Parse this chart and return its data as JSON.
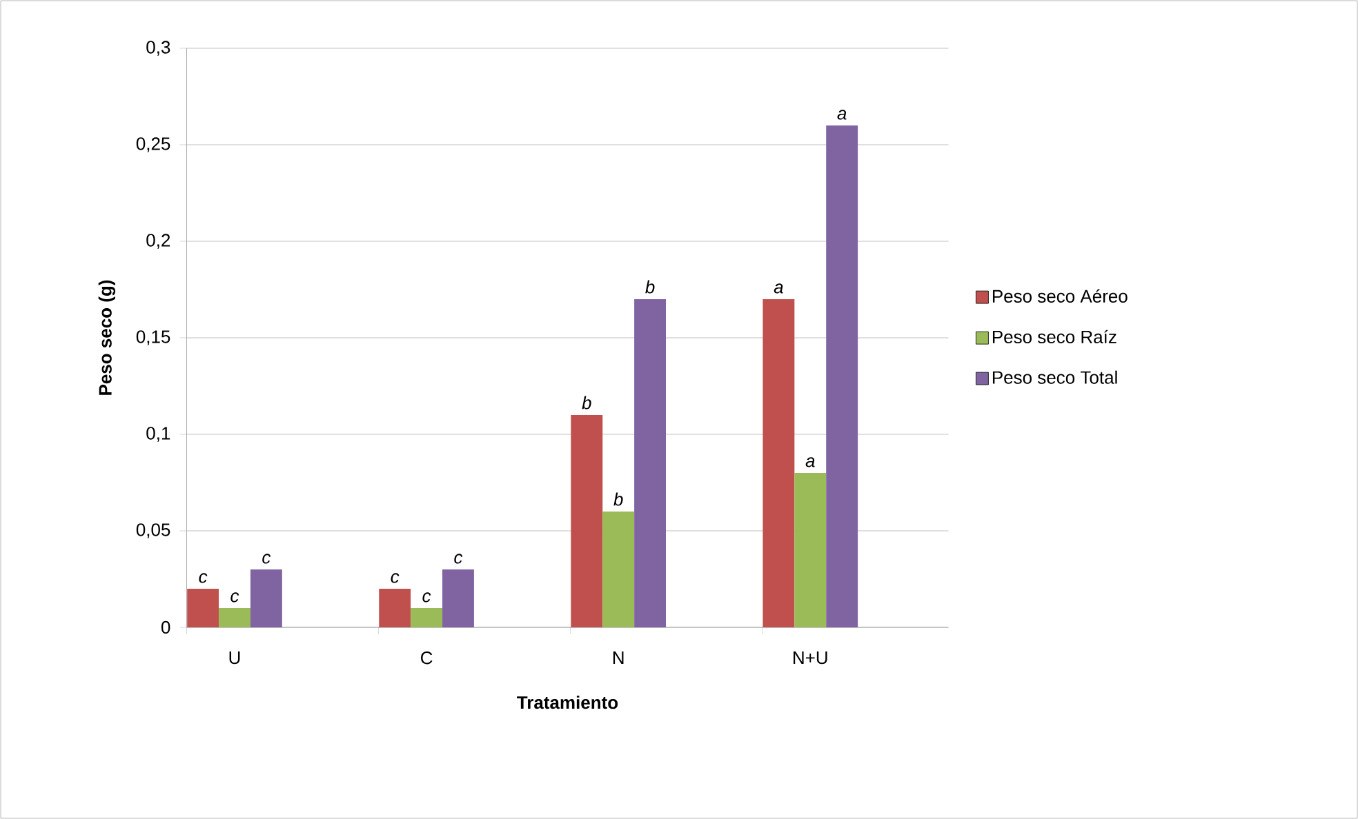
{
  "chart_data": {
    "type": "bar",
    "xlabel": "Tratamiento",
    "ylabel": "Peso seco (g)",
    "categories": [
      "U",
      "C",
      "N",
      "N+U"
    ],
    "series": [
      {
        "name": "Peso seco Aéreo",
        "color": "#c0504d",
        "values": [
          0.02,
          0.02,
          0.11,
          0.17
        ]
      },
      {
        "name": "Peso seco Raíz",
        "color": "#9bbb59",
        "values": [
          0.01,
          0.01,
          0.06,
          0.08
        ]
      },
      {
        "name": "Peso seco Total",
        "color": "#8064a2",
        "values": [
          0.03,
          0.03,
          0.17,
          0.26
        ]
      }
    ],
    "ylim": [
      0,
      0.3
    ],
    "yticks": [
      0,
      {
        "value": 0.05,
        "label": "0,05"
      },
      {
        "value": 0.1,
        "label": "0,1"
      },
      {
        "value": 0.15,
        "label": "0,15"
      },
      {
        "value": 0.2,
        "label": "0,2"
      },
      {
        "value": 0.25,
        "label": "0,25"
      },
      {
        "value": 0.3,
        "label": "0,3"
      }
    ],
    "grid": "y",
    "legend": "right",
    "annotations": [
      "c",
      "c",
      "c",
      "c",
      "c",
      "c",
      "b",
      "b",
      "b",
      "a",
      "a",
      "a"
    ]
  }
}
